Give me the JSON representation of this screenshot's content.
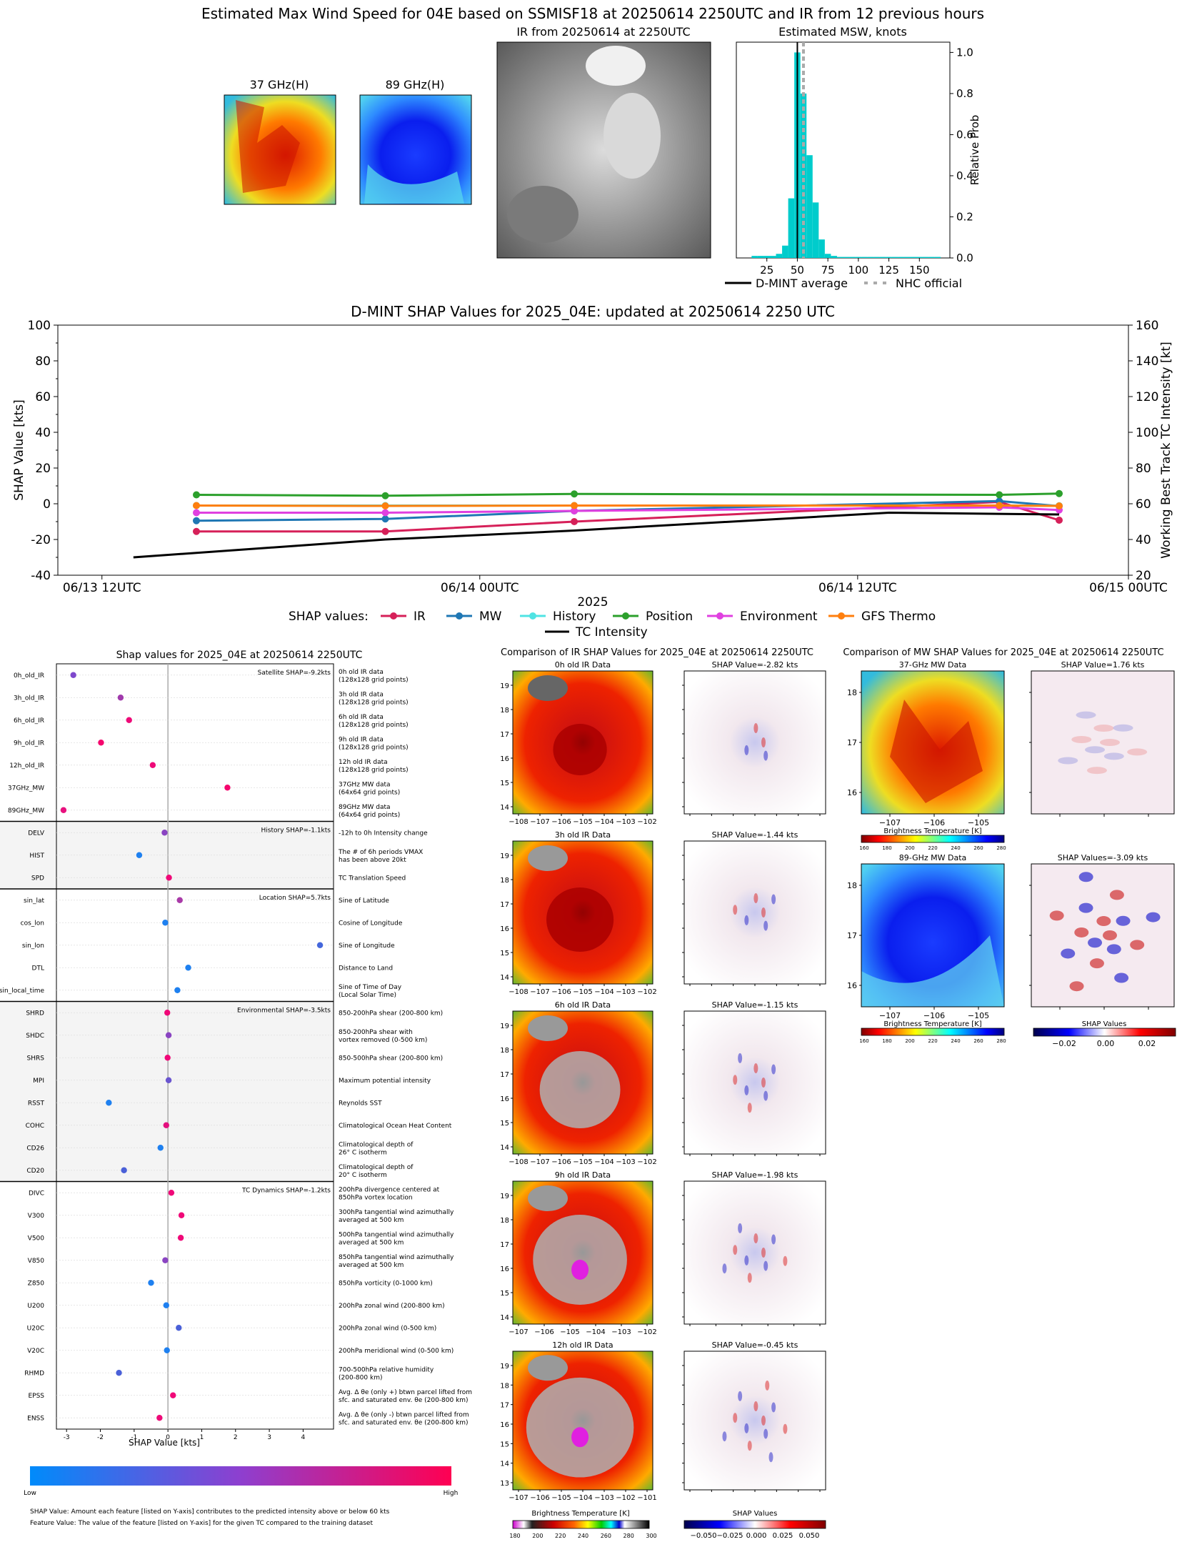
{
  "top": {
    "title": "Estimated Max Wind Speed for 04E based on SSMISF18 at 20250614 2250UTC and IR from 12 previous hours",
    "mw37_title": "37 GHz(H)",
    "mw89_title": "89 GHz(H)",
    "ir_title": "IR from 20250614 at 2250UTC",
    "hist_title": "Estimated MSW, knots",
    "hist_ylabel": "Relative Prob",
    "hist_xticks": [
      "25",
      "50",
      "75",
      "100",
      "125",
      "150"
    ],
    "hist_yticks": [
      "0.0",
      "0.2",
      "0.4",
      "0.6",
      "0.8",
      "1.0"
    ],
    "legend_avg": "D-MINT average",
    "legend_nhc": "NHC official"
  },
  "shap_ts": {
    "title": "D-MINT SHAP Values for 2025_04E: updated at 20250614 2250 UTC",
    "ylabel_left": "SHAP Value [kts]",
    "ylabel_right": "Working Best Track TC Intensity [kt]",
    "xlabel": "2025",
    "yticks_left": [
      "-40",
      "-20",
      "0",
      "20",
      "40",
      "60",
      "80",
      "100"
    ],
    "yticks_right": [
      "20",
      "40",
      "60",
      "80",
      "100",
      "120",
      "140",
      "160"
    ],
    "xticks": [
      "06/13 12UTC",
      "06/14 00UTC",
      "06/14 12UTC",
      "06/15 00UTC"
    ],
    "legend_prefix": "SHAP values:",
    "legend_tc": "TC Intensity"
  },
  "bee": {
    "title": "Shap values for 2025_04E at 20250614 2250UTC",
    "xlabel": "SHAP Value [kts]",
    "xticks": [
      "-3",
      "-2",
      "-1",
      "0",
      "1",
      "2",
      "3",
      "4"
    ],
    "cbar_low": "Low",
    "cbar_high": "High",
    "note1": "SHAP Value: Amount each feature [listed on Y-axis] contributes to the predicted intensity above or below 60 kts",
    "note2": "Feature Value: The value of the feature [listed on Y-axis] for the given TC compared to the training dataset",
    "groups": [
      {
        "label": "Satellite SHAP=-9.2kts",
        "shade": false
      },
      {
        "label": "History SHAP=-1.1kts",
        "shade": true
      },
      {
        "label": "Location SHAP=5.7kts",
        "shade": false
      },
      {
        "label": "Environmental SHAP=-3.5kts",
        "shade": true
      },
      {
        "label": "TC Dynamics SHAP=-1.2kts",
        "shade": false
      }
    ],
    "features": [
      {
        "name": "0h_old_IR",
        "desc1": "0h old IR data",
        "desc2": "(128x128 grid points)",
        "value": -2.8,
        "color": "#7e48cc",
        "group": 0
      },
      {
        "name": "3h_old_IR",
        "desc1": "3h old IR data",
        "desc2": "(128x128 grid points)",
        "value": -1.4,
        "color": "#a03aac",
        "group": 0
      },
      {
        "name": "6h_old_IR",
        "desc1": "6h old IR data",
        "desc2": "(128x128 grid points)",
        "value": -1.15,
        "color": "#ee0a78",
        "group": 0
      },
      {
        "name": "9h_old_IR",
        "desc1": "9h old IR data",
        "desc2": "(128x128 grid points)",
        "value": -1.98,
        "color": "#f5056d",
        "group": 0
      },
      {
        "name": "12h_old_IR",
        "desc1": "12h old IR data",
        "desc2": "(128x128 grid points)",
        "value": -0.45,
        "color": "#ee0a78",
        "group": 0
      },
      {
        "name": "37GHz_MW",
        "desc1": "37GHz MW data",
        "desc2": "(64x64 grid points)",
        "value": 1.76,
        "color": "#f5056d",
        "group": 0
      },
      {
        "name": "89GHz_MW",
        "desc1": "89GHz MW data",
        "desc2": "(64x64 grid points)",
        "value": -3.09,
        "color": "#e8107e",
        "group": 0
      },
      {
        "name": "DELV",
        "desc1": "-12h to 0h Intensity change",
        "desc2": "",
        "value": -0.1,
        "color": "#8a44c2",
        "group": 1
      },
      {
        "name": "HIST",
        "desc1": "The # of 6h periods VMAX",
        "desc2": "has been above 20kt",
        "value": -0.85,
        "color": "#1e80f0",
        "group": 1
      },
      {
        "name": "SPD",
        "desc1": "TC Translation Speed",
        "desc2": "",
        "value": 0.03,
        "color": "#f00878",
        "group": 1
      },
      {
        "name": "sin_lat",
        "desc1": "Sine of Latitude",
        "desc2": "",
        "value": 0.35,
        "color": "#a93aa8",
        "group": 2
      },
      {
        "name": "cos_lon",
        "desc1": "Cosine of Longitude",
        "desc2": "",
        "value": -0.08,
        "color": "#1e80f0",
        "group": 2
      },
      {
        "name": "sin_lon",
        "desc1": "Sine of Longitude",
        "desc2": "",
        "value": 4.5,
        "color": "#4467dc",
        "group": 2
      },
      {
        "name": "DTL",
        "desc1": "Distance to Land",
        "desc2": "",
        "value": 0.6,
        "color": "#1e80f0",
        "group": 2
      },
      {
        "name": "sin_local_time",
        "desc1": "Sine of Time of Day",
        "desc2": "(Local Solar Time)",
        "value": 0.28,
        "color": "#1e80f0",
        "group": 2
      },
      {
        "name": "SHRD",
        "desc1": "850-200hPa shear (200-800 km)",
        "desc2": "",
        "value": -0.02,
        "color": "#f00878",
        "group": 3
      },
      {
        "name": "SHDC",
        "desc1": "850-200hPa shear with",
        "desc2": "vortex removed (0-500 km)",
        "value": 0.02,
        "color": "#8a44c2",
        "group": 3
      },
      {
        "name": "SHRS",
        "desc1": "850-500hPa shear (200-800 km)",
        "desc2": "",
        "value": -0.01,
        "color": "#f00878",
        "group": 3
      },
      {
        "name": "MPI",
        "desc1": "Maximum potential intensity",
        "desc2": "",
        "value": 0.02,
        "color": "#6a55d0",
        "group": 3
      },
      {
        "name": "RSST",
        "desc1": "Reynolds SST",
        "desc2": "",
        "value": -1.75,
        "color": "#1e80f0",
        "group": 3
      },
      {
        "name": "COHC",
        "desc1": "Climatological Ocean Heat Content",
        "desc2": "",
        "value": -0.05,
        "color": "#e4107e",
        "group": 3
      },
      {
        "name": "CD26",
        "desc1": "Climatological depth of",
        "desc2": "26° C isotherm",
        "value": -0.22,
        "color": "#1e80f0",
        "group": 3
      },
      {
        "name": "CD20",
        "desc1": "Climatological depth of",
        "desc2": "20° C isotherm",
        "value": -1.3,
        "color": "#4a60d8",
        "group": 3
      },
      {
        "name": "DIVC",
        "desc1": "200hPa divergence centered at",
        "desc2": "850hPa vortex location",
        "value": 0.1,
        "color": "#f00878",
        "group": 4
      },
      {
        "name": "V300",
        "desc1": "300hPa tangential wind azimuthally",
        "desc2": "averaged at 500 km",
        "value": 0.4,
        "color": "#f00878",
        "group": 4
      },
      {
        "name": "V500",
        "desc1": "500hPa tangential wind azimuthally",
        "desc2": "averaged at 500 km",
        "value": 0.38,
        "color": "#f00878",
        "group": 4
      },
      {
        "name": "V850",
        "desc1": "850hPa tangential wind azimuthally",
        "desc2": "averaged at 500 km",
        "value": -0.08,
        "color": "#8a44c2",
        "group": 4
      },
      {
        "name": "Z850",
        "desc1": "850hPa vorticity (0-1000 km)",
        "desc2": "",
        "value": -0.5,
        "color": "#1e80f0",
        "group": 4
      },
      {
        "name": "U200",
        "desc1": "200hPa zonal wind (200-800 km)",
        "desc2": "",
        "value": -0.05,
        "color": "#1e80f0",
        "group": 4
      },
      {
        "name": "U20C",
        "desc1": "200hPa zonal wind (0-500 km)",
        "desc2": "",
        "value": 0.32,
        "color": "#4a60d8",
        "group": 4
      },
      {
        "name": "V20C",
        "desc1": "200hPa meridional wind (0-500 km)",
        "desc2": "",
        "value": -0.03,
        "color": "#1e80f0",
        "group": 4
      },
      {
        "name": "RHMD",
        "desc1": "700-500hPa relative humidity",
        "desc2": "(200-800 km)",
        "value": -1.45,
        "color": "#4a60d8",
        "group": 4
      },
      {
        "name": "EPSS",
        "desc1": "Avg. Δ θe (only +) btwn parcel lifted from",
        "desc2": "sfc. and saturated env. θe (200-800 km)",
        "value": 0.15,
        "color": "#f00878",
        "group": 4
      },
      {
        "name": "ENSS",
        "desc1": "Avg. Δ θe (only -) btwn parcel lifted from",
        "desc2": "sfc. and saturated env. θe (200-800 km)",
        "value": -0.25,
        "color": "#ee0a78",
        "group": 4
      }
    ]
  },
  "ir_cmp": {
    "title": "Comparison of IR SHAP Values for 2025_04E at 20250614 2250UTC",
    "panels": [
      {
        "data_title": "0h old IR Data",
        "shap_title": "SHAP Value=-2.82 kts"
      },
      {
        "data_title": "3h old IR Data",
        "shap_title": "SHAP Value=-1.44 kts"
      },
      {
        "data_title": "6h old IR Data",
        "shap_title": "SHAP Value=-1.15 kts"
      },
      {
        "data_title": "9h old IR Data",
        "shap_title": "SHAP Value=-1.98 kts"
      },
      {
        "data_title": "12h old IR Data",
        "shap_title": "SHAP Value=-0.45 kts"
      }
    ],
    "yticks": [
      "19",
      "18",
      "17",
      "16",
      "15",
      "14",
      "13"
    ],
    "xticks_a": [
      "−108",
      "−107",
      "−106",
      "−105",
      "−104",
      "−103",
      "−102"
    ],
    "xticks_b": [
      "−107",
      "−106",
      "−105",
      "−104",
      "−103",
      "−102"
    ],
    "xticks_c": [
      "−107",
      "−106",
      "−105",
      "−104",
      "−103",
      "−102",
      "−101"
    ],
    "cbar_bt_label": "Brightness Temperature [K]",
    "cbar_bt_ticks": [
      "180",
      "200",
      "220",
      "240",
      "260",
      "280",
      "300"
    ],
    "cbar_shap_label": "SHAP Values",
    "cbar_shap_ticks": [
      "−0.050",
      "−0.025",
      "0.000",
      "0.025",
      "0.050"
    ]
  },
  "mw_cmp": {
    "title": "Comparison of MW SHAP Values for 2025_04E at 20250614 2250UTC",
    "p37_title": "37-GHz MW Data",
    "s37_title": "SHAP Value=1.76 kts",
    "p89_title": "89-GHz MW Data",
    "s89_title": "SHAP Values=-3.09 kts",
    "yticks": [
      "18",
      "17",
      "16"
    ],
    "xticks": [
      "−107",
      "−106",
      "−105"
    ],
    "cbar_bt_label": "Brightness Temperature [K]",
    "cbar_bt_ticks": [
      "160",
      "180",
      "200",
      "220",
      "240",
      "260",
      "280"
    ],
    "cbar_shap_label": "SHAP Values",
    "cbar_shap_ticks": [
      "−0.02",
      "0.00",
      "0.02"
    ]
  },
  "chart_data": [
    {
      "type": "bar",
      "title": "Estimated MSW, knots",
      "xlabel": "",
      "ylabel": "Relative Prob",
      "xlim": [
        0,
        175
      ],
      "ylim": [
        0,
        1.05
      ],
      "bin_width": 5,
      "bins": [
        15,
        20,
        25,
        30,
        35,
        40,
        45,
        50,
        55,
        60,
        65,
        70,
        75,
        80,
        85,
        90,
        95,
        100,
        105,
        110,
        115,
        120,
        125,
        130,
        135,
        140,
        145,
        150,
        155,
        160,
        165
      ],
      "values": [
        0.01,
        0.01,
        0.01,
        0.01,
        0.02,
        0.06,
        0.29,
        1.0,
        0.8,
        0.5,
        0.27,
        0.09,
        0.02,
        0.01,
        0.005,
        0.005,
        0.005,
        0.005,
        0.005,
        0.005,
        0.005,
        0.005,
        0.005,
        0.005,
        0.005,
        0.005,
        0.005,
        0.005,
        0.005,
        0.005,
        0.005
      ],
      "dmint_average": 50,
      "nhc_official": 55
    },
    {
      "type": "line",
      "title": "D-MINT SHAP Values for 2025_04E: updated at 20250614 2250 UTC",
      "xlabel": "2025",
      "ylabel": "SHAP Value [kts]",
      "ylabel_right": "Working Best Track TC Intensity [kt]",
      "ylim": [
        -40,
        100
      ],
      "ylim_right": [
        20,
        160
      ],
      "x": [
        "06/13 12UTC",
        "06/13 18UTC",
        "06/14 00UTC",
        "06/14 06UTC",
        "06/14 12UTC",
        "06/14 18UTC",
        "06/14 22UTC"
      ],
      "x_hours": [
        0,
        6,
        18,
        30,
        45,
        57,
        60.8
      ],
      "series": [
        {
          "name": "IR",
          "color": "#d62059",
          "x": [
            6,
            18,
            30,
            57,
            60.8
          ],
          "values": [
            -15.5,
            -15.5,
            -10,
            1,
            -9.2
          ]
        },
        {
          "name": "MW",
          "color": "#1f77b4",
          "x": [
            6,
            18,
            30,
            57,
            60.8
          ],
          "values": [
            -9.5,
            -8.5,
            -4,
            1.5,
            -1.3
          ]
        },
        {
          "name": "History",
          "color": "#4fe3e3",
          "x": [
            6,
            18,
            30,
            57,
            60.8
          ],
          "values": [
            -1,
            -1,
            -1,
            -1,
            -1.1
          ]
        },
        {
          "name": "Position",
          "color": "#2ca02c",
          "x": [
            6,
            18,
            30,
            57,
            60.8
          ],
          "values": [
            5,
            4.5,
            5.5,
            5,
            5.7
          ]
        },
        {
          "name": "Environment",
          "color": "#e040e0",
          "x": [
            6,
            18,
            30,
            57,
            60.8
          ],
          "values": [
            -5,
            -5,
            -4,
            -2,
            -3.5
          ]
        },
        {
          "name": "GFS Thermo",
          "color": "#ff7f0e",
          "x": [
            6,
            18,
            30,
            57,
            60.8
          ],
          "values": [
            -1,
            -1.2,
            -1,
            -1,
            -1.2
          ]
        }
      ],
      "tc_intensity": {
        "name": "TC Intensity",
        "x": [
          2,
          18,
          30,
          50,
          60.8
        ],
        "values": [
          30,
          40,
          45,
          55,
          54
        ]
      }
    },
    {
      "type": "scatter",
      "title": "Shap values for 2025_04E at 20250614 2250UTC",
      "xlabel": "SHAP Value [kts]",
      "xlim": [
        -3.3,
        4.9
      ]
    }
  ]
}
